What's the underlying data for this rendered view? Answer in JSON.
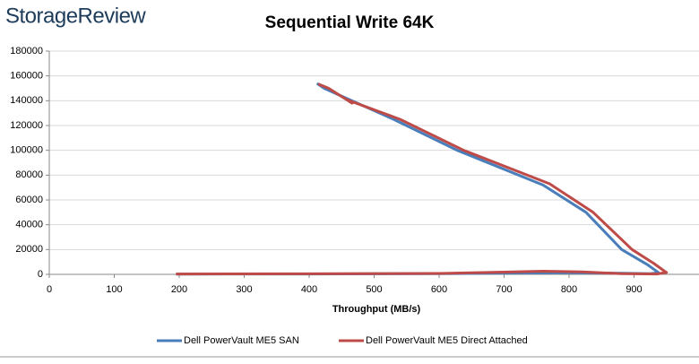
{
  "brand": "StorageReview",
  "chart_data": {
    "type": "line",
    "title": "Sequential Write 64K",
    "x_label": "Throughput (MB/s)",
    "xlim": [
      0,
      1000
    ],
    "xticks": [
      0,
      100,
      200,
      300,
      400,
      500,
      600,
      700,
      800,
      900
    ],
    "ylim": [
      0,
      180000
    ],
    "yticks": [
      0,
      20000,
      40000,
      60000,
      80000,
      100000,
      120000,
      140000,
      160000,
      180000
    ],
    "grid": true,
    "legend": "bottom",
    "series": [
      {
        "name": "Dell PowerVault ME5 SAN",
        "color": "#4a7ebb",
        "x": [
          195,
          400,
          600,
          700,
          800,
          880,
          925,
          938,
          936,
          920,
          881,
          826,
          760,
          628,
          530,
          423,
          412
        ],
        "values": [
          200,
          300,
          500,
          1000,
          1300,
          900,
          500,
          1200,
          2000,
          8000,
          20000,
          50000,
          72000,
          100000,
          125000,
          150000,
          154000
        ]
      },
      {
        "name": "Dell PowerVault ME5 Direct Attached",
        "color": "#be4b48",
        "x": [
          195,
          400,
          600,
          700,
          760,
          820,
          880,
          935,
          950,
          947,
          930,
          897,
          837,
          770,
          638,
          540,
          462,
          458,
          466,
          430,
          414
        ],
        "values": [
          300,
          400,
          700,
          1800,
          2500,
          2000,
          500,
          300,
          1500,
          2500,
          9000,
          20000,
          50000,
          73000,
          100000,
          125000,
          140000,
          141000,
          138000,
          150000,
          153500
        ]
      }
    ]
  }
}
